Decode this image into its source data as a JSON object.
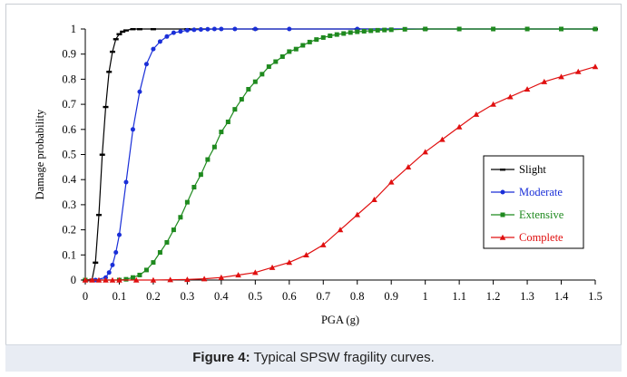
{
  "caption": {
    "label": "Figure 4:",
    "text": "Typical SPSW fragility curves."
  },
  "chart_data": {
    "type": "line",
    "xlabel": "PGA (g)",
    "ylabel": "Damage probability",
    "xlim": [
      0,
      1.5
    ],
    "ylim": [
      0,
      1
    ],
    "x_ticks": [
      "0",
      "0.1",
      "0.2",
      "0.3",
      "0.4",
      "0.5",
      "0.6",
      "0.7",
      "0.8",
      "0.9",
      "1",
      "1.1",
      "1.2",
      "1.3",
      "1.4",
      "1.5"
    ],
    "y_ticks": [
      "0",
      "0.1",
      "0.2",
      "0.3",
      "0.4",
      "0.5",
      "0.6",
      "0.7",
      "0.8",
      "0.9",
      "1"
    ],
    "grid": false,
    "legend_position": "right",
    "series": [
      {
        "name": "Slight",
        "color": "#000000",
        "marker": "dash",
        "x": [
          0,
          0.01,
          0.02,
          0.03,
          0.04,
          0.05,
          0.06,
          0.07,
          0.08,
          0.09,
          0.1,
          0.11,
          0.12,
          0.14,
          0.16,
          0.2,
          0.3,
          0.5,
          0.8,
          1.0,
          1.5
        ],
        "y": [
          0,
          0,
          0.002,
          0.07,
          0.26,
          0.5,
          0.69,
          0.83,
          0.91,
          0.96,
          0.98,
          0.99,
          0.995,
          1,
          1,
          1,
          1,
          1,
          1,
          1,
          1
        ]
      },
      {
        "name": "Moderate",
        "color": "#1a2fd8",
        "marker": "circle",
        "x": [
          0,
          0.03,
          0.06,
          0.07,
          0.08,
          0.09,
          0.1,
          0.12,
          0.14,
          0.16,
          0.18,
          0.2,
          0.22,
          0.24,
          0.26,
          0.28,
          0.3,
          0.32,
          0.34,
          0.36,
          0.38,
          0.4,
          0.44,
          0.5,
          0.6,
          0.8,
          1.0,
          1.5
        ],
        "y": [
          0,
          0,
          0.01,
          0.03,
          0.06,
          0.11,
          0.18,
          0.39,
          0.6,
          0.75,
          0.86,
          0.92,
          0.95,
          0.97,
          0.985,
          0.99,
          0.995,
          0.997,
          0.998,
          0.999,
          1,
          1,
          1,
          1,
          1,
          1,
          1,
          1
        ]
      },
      {
        "name": "Extensive",
        "color": "#1f8a1f",
        "marker": "square",
        "x": [
          0,
          0.1,
          0.12,
          0.14,
          0.16,
          0.18,
          0.2,
          0.22,
          0.24,
          0.26,
          0.28,
          0.3,
          0.32,
          0.34,
          0.36,
          0.38,
          0.4,
          0.42,
          0.44,
          0.46,
          0.48,
          0.5,
          0.52,
          0.54,
          0.56,
          0.58,
          0.6,
          0.62,
          0.64,
          0.66,
          0.68,
          0.7,
          0.72,
          0.74,
          0.76,
          0.78,
          0.8,
          0.82,
          0.84,
          0.86,
          0.88,
          0.9,
          0.94,
          1.0,
          1.1,
          1.2,
          1.3,
          1.4,
          1.5
        ],
        "y": [
          0,
          0,
          0.003,
          0.01,
          0.02,
          0.04,
          0.07,
          0.11,
          0.15,
          0.2,
          0.25,
          0.31,
          0.37,
          0.42,
          0.48,
          0.53,
          0.59,
          0.63,
          0.68,
          0.72,
          0.76,
          0.79,
          0.82,
          0.85,
          0.87,
          0.89,
          0.91,
          0.92,
          0.935,
          0.948,
          0.958,
          0.966,
          0.973,
          0.978,
          0.982,
          0.986,
          0.989,
          0.991,
          0.993,
          0.995,
          0.996,
          0.997,
          0.999,
          1,
          1,
          1,
          1,
          1,
          1
        ]
      },
      {
        "name": "Complete",
        "color": "#e01010",
        "marker": "triangle",
        "x": [
          0,
          0.02,
          0.04,
          0.06,
          0.08,
          0.1,
          0.15,
          0.2,
          0.25,
          0.3,
          0.35,
          0.4,
          0.45,
          0.5,
          0.55,
          0.6,
          0.65,
          0.7,
          0.75,
          0.8,
          0.85,
          0.9,
          0.95,
          1.0,
          1.05,
          1.1,
          1.15,
          1.2,
          1.25,
          1.3,
          1.35,
          1.4,
          1.45,
          1.5
        ],
        "y": [
          0,
          0,
          0,
          0,
          0,
          0,
          0,
          0,
          0.001,
          0.002,
          0.005,
          0.01,
          0.02,
          0.03,
          0.05,
          0.07,
          0.1,
          0.14,
          0.2,
          0.26,
          0.32,
          0.39,
          0.45,
          0.51,
          0.56,
          0.61,
          0.66,
          0.7,
          0.73,
          0.76,
          0.79,
          0.81,
          0.83,
          0.85
        ]
      }
    ]
  }
}
